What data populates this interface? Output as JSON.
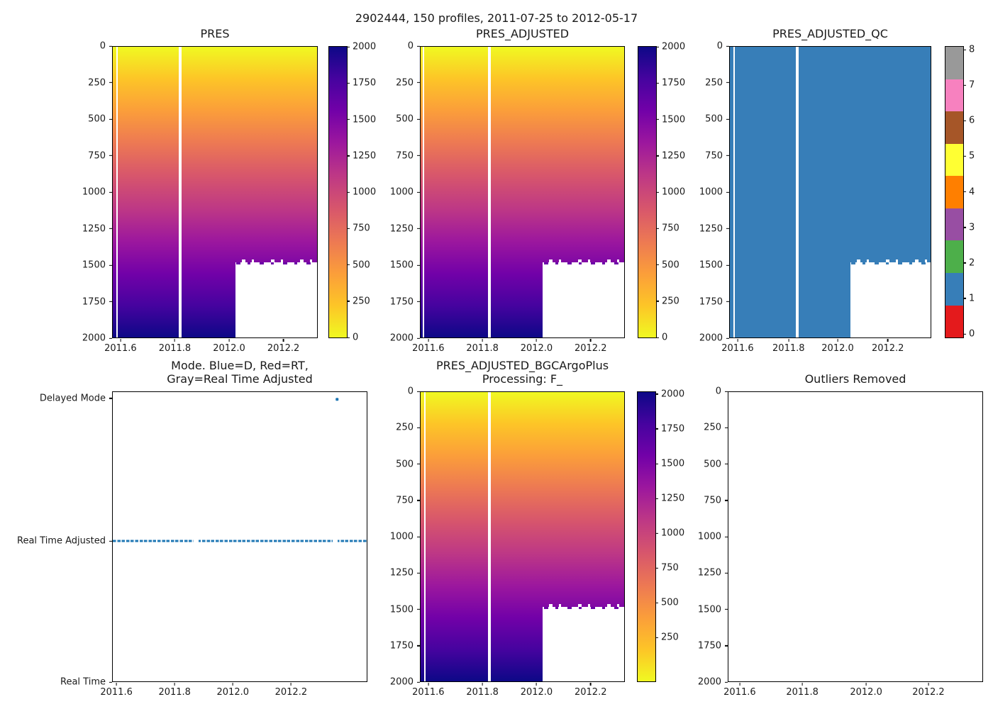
{
  "figure": {
    "suptitle": "2902444, 150 profiles, 2011-07-25 to 2012-05-17"
  },
  "panels": {
    "pres": {
      "title": "PRES"
    },
    "pres_adjusted": {
      "title": "PRES_ADJUSTED"
    },
    "pres_adjusted_qc": {
      "title": "PRES_ADJUSTED_QC"
    },
    "mode": {
      "title": "Mode. Blue=D, Red=RT,\nGray=Real Time Adjusted"
    },
    "bgc": {
      "title": "PRES_ADJUSTED_BGCArgoPlus\nProcessing: F_"
    },
    "outliers": {
      "title": "Outliers Removed"
    }
  },
  "ticks": {
    "depth": [
      "0",
      "250",
      "500",
      "750",
      "1000",
      "1250",
      "1500",
      "1750",
      "2000"
    ],
    "time": [
      "2011.6",
      "2011.8",
      "2012.0",
      "2012.2"
    ],
    "cbar_pressure": [
      "2000",
      "1750",
      "1500",
      "1250",
      "1000",
      "750",
      "500",
      "250",
      "0"
    ],
    "cbar_pressure_bgc": [
      "2000",
      "1750",
      "1500",
      "1250",
      "1000",
      "750",
      "500",
      "250"
    ],
    "cbar_qc": [
      "8",
      "7",
      "6",
      "5",
      "4",
      "3",
      "2",
      "1",
      "0"
    ],
    "mode_levels": [
      "Delayed Mode",
      "Real Time Adjusted",
      "Real Time"
    ]
  },
  "colors": {
    "colormap": "plasma_r",
    "plasma_min_pressure": "#f0f921",
    "plasma_max_pressure": "#0d0887",
    "qc_flag_1_fill": "#377eb8",
    "mode_marker": "#1f77b4",
    "qc_flag_colors_bottom_to_top": [
      "#e41a1c",
      "#377eb8",
      "#4daf4a",
      "#984ea3",
      "#ff7f00",
      "#ffff33",
      "#a65628",
      "#f781bf",
      "#999999"
    ]
  },
  "chart_data": [
    {
      "id": "pres",
      "type": "heatmap",
      "title": "PRES",
      "x_ticks": [
        2011.6,
        2011.8,
        2012.0,
        2012.2
      ],
      "x_range": [
        2011.56,
        2012.38
      ],
      "y_ticks": [
        0,
        250,
        500,
        750,
        1000,
        1250,
        1500,
        1750,
        2000
      ],
      "y_range": [
        0,
        2000
      ],
      "y_inverted": true,
      "colormap": "plasma_r",
      "colorbar_range": [
        0,
        2000
      ],
      "colorbar_ticks": [
        2000,
        1750,
        1500,
        1250,
        1000,
        750,
        500,
        250,
        0
      ],
      "pattern": {
        "value": "pressure equals depth: 0 dbar at surface (yellow) grading to 2000 dbar at bottom (dark navy)",
        "full_depth_span_x": [
          2011.56,
          2012.05
        ],
        "shallow_span": {
          "x": [
            2012.05,
            2012.38
          ],
          "max_depth_dbar": 1510,
          "edge": "jagged around 1500"
        },
        "missing_profile_gaps_x": [
          2011.58,
          2011.83
        ]
      }
    },
    {
      "id": "pres_adjusted",
      "type": "heatmap",
      "title": "PRES_ADJUSTED",
      "x_ticks": [
        2011.6,
        2011.8,
        2012.0,
        2012.2
      ],
      "y_ticks": [
        0,
        250,
        500,
        750,
        1000,
        1250,
        1500,
        1750,
        2000
      ],
      "y_range": [
        0,
        2000
      ],
      "y_inverted": true,
      "colormap": "plasma_r",
      "colorbar_range": [
        0,
        2000
      ],
      "colorbar_ticks": [
        2000,
        1750,
        1500,
        1250,
        1000,
        750,
        500,
        250,
        0
      ],
      "pattern": "identical to PRES panel: full-depth profiles until ~2012.05, ~1500 dbar profiles afterwards, gaps near 2011.58 and 2011.83"
    },
    {
      "id": "pres_adjusted_qc",
      "type": "heatmap",
      "title": "PRES_ADJUSTED_QC",
      "x_ticks": [
        2011.6,
        2011.8,
        2012.0,
        2012.2
      ],
      "y_ticks": [
        0,
        250,
        500,
        750,
        1000,
        1250,
        1500,
        1750,
        2000
      ],
      "y_range": [
        0,
        2000
      ],
      "y_inverted": true,
      "value_constant": 1,
      "value_meaning": "QC flag 1 everywhere (blue)",
      "colorbar_ticks": [
        8,
        7,
        6,
        5,
        4,
        3,
        2,
        1,
        0
      ],
      "colorbar_segment_colors_bottom_to_top": [
        "#e41a1c",
        "#377eb8",
        "#4daf4a",
        "#984ea3",
        "#ff7f00",
        "#ffff33",
        "#a65628",
        "#f781bf",
        "#999999"
      ],
      "pattern": "same footprint as PRES: full depth until ~2012.05, ~1500 dbar afterwards, gaps near 2011.58 and 2011.83"
    },
    {
      "id": "mode",
      "type": "scatter",
      "title": "Mode. Blue=D, Red=RT, Gray=Real Time Adjusted",
      "x_ticks": [
        2011.6,
        2011.8,
        2012.0,
        2012.2
      ],
      "y_categories": [
        "Real Time",
        "Real Time Adjusted",
        "Delayed Mode"
      ],
      "marker_color": "#1f77b4",
      "series": [
        {
          "level": "Real Time Adjusted",
          "description": "dense near-continuous row of small dots spanning 2011.56 to 2012.43",
          "gaps_x": [
            2011.88,
            2012.31
          ]
        },
        {
          "level": "Delayed Mode",
          "points_x": [
            2012.32
          ]
        },
        {
          "level": "Real Time",
          "points_x": []
        }
      ]
    },
    {
      "id": "bgc",
      "type": "heatmap",
      "title": "PRES_ADJUSTED_BGCArgoPlus Processing: F_",
      "x_ticks": [
        2011.6,
        2011.8,
        2012.0,
        2012.2
      ],
      "y_ticks": [
        0,
        250,
        500,
        750,
        1000,
        1250,
        1500,
        1750,
        2000
      ],
      "y_range": [
        0,
        2000
      ],
      "y_inverted": true,
      "colormap": "plasma_r",
      "colorbar_ticks": [
        2000,
        1750,
        1500,
        1250,
        1000,
        750,
        500,
        250
      ],
      "pattern": "identical footprint to PRES: full depth until ~2012.05, ~1500 dbar afterwards, gaps near 2011.58 and 2011.83"
    },
    {
      "id": "outliers",
      "type": "heatmap",
      "title": "Outliers Removed",
      "empty": true,
      "x_ticks": [
        2011.6,
        2011.8,
        2012.0,
        2012.2
      ],
      "y_ticks": [
        0,
        250,
        500,
        750,
        1000,
        1250,
        1500,
        1750,
        2000
      ],
      "y_range": [
        0,
        2000
      ],
      "y_inverted": true,
      "description": "axes only, no data plotted"
    }
  ]
}
